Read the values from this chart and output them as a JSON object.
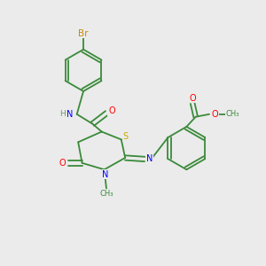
{
  "bg_color": "#ebebeb",
  "bond_color": "#3a8a3a",
  "atom_colors": {
    "N": "#0000ff",
    "O": "#ff0000",
    "S": "#ccaa00",
    "Br": "#cc8800",
    "C": "#3a8a3a",
    "H": "#6a9a6a"
  },
  "font_size": 7.0,
  "lw": 1.3
}
